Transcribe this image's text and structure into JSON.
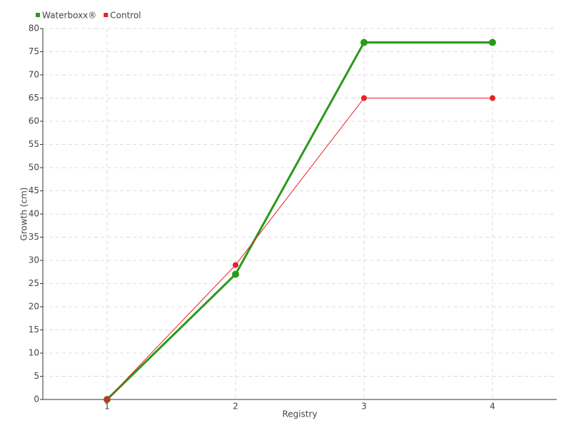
{
  "chart_data": {
    "type": "line",
    "categories": [
      "1",
      "2",
      "3",
      "4"
    ],
    "series": [
      {
        "name": "Waterboxx®",
        "color": "#2a9a1a",
        "values": [
          0,
          27,
          77,
          77
        ]
      },
      {
        "name": "Control",
        "color": "#e8202a",
        "values": [
          0,
          29,
          65,
          65
        ]
      }
    ],
    "x_label": "Registry",
    "y_label": "Growth (cm)",
    "ylim": [
      0,
      80
    ],
    "yticks": [
      0,
      5,
      10,
      15,
      20,
      25,
      30,
      35,
      40,
      45,
      50,
      55,
      60,
      65,
      70,
      75,
      80
    ],
    "grid": true,
    "legend": "top-left"
  }
}
